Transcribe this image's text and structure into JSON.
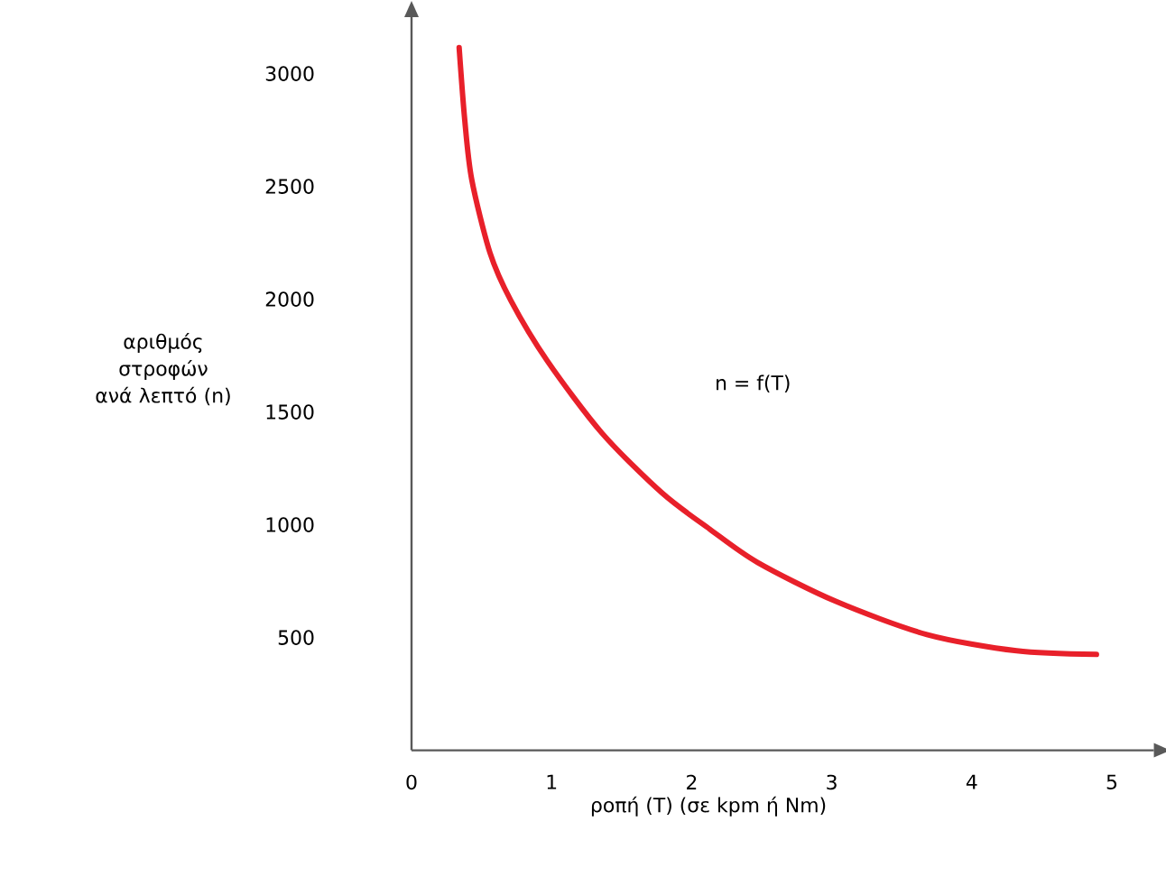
{
  "chart_data": {
    "type": "line",
    "xlabel": "ροπή (Τ) (σε kpm ή Nm)",
    "ylabel": "αριθμός στροφών ανά λεπτό (n)",
    "xlim": [
      0,
      5.3
    ],
    "ylim": [
      0,
      3250
    ],
    "xticks": [
      0,
      1,
      2,
      3,
      4,
      5
    ],
    "yticks": [
      500,
      1000,
      1500,
      2000,
      2500,
      3000
    ],
    "series": [
      {
        "name": "n = f(T)",
        "color": "#e8202a",
        "x": [
          0.34,
          0.38,
          0.43,
          0.56,
          0.71,
          0.97,
          1.36,
          1.79,
          2.13,
          2.47,
          3.03,
          3.68,
          4.32,
          4.89
        ],
        "values": [
          3115,
          2794,
          2530,
          2206,
          1993,
          1726,
          1406,
          1140,
          980,
          833,
          660,
          513,
          441,
          425
        ]
      }
    ]
  }
}
